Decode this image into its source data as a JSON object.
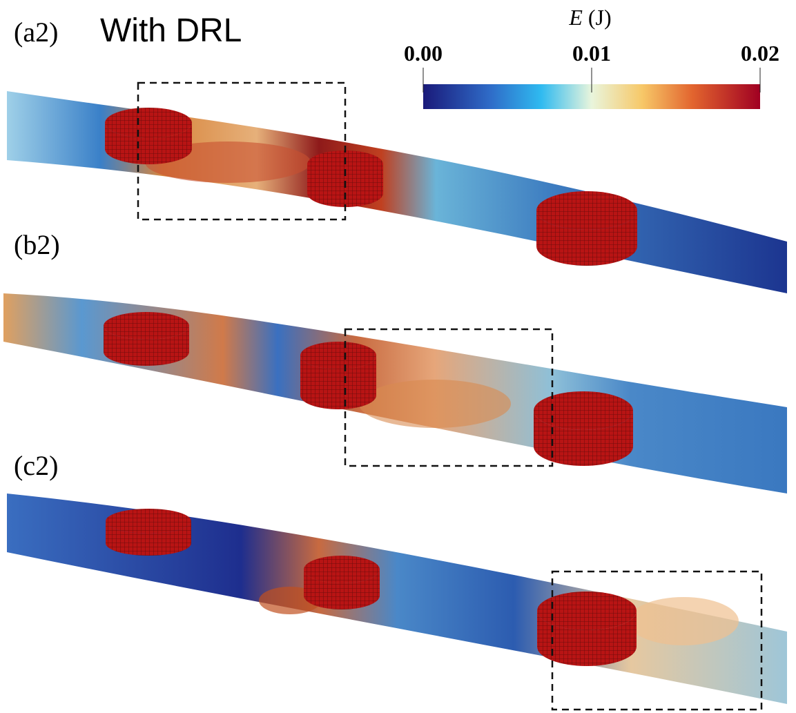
{
  "title": "With DRL",
  "panels": [
    {
      "label": "(a2)"
    },
    {
      "label": "(b2)"
    },
    {
      "label": "(c2)"
    }
  ],
  "colorbar": {
    "symbol": "E",
    "unit": "(J)",
    "lim": [
      0,
      0.02
    ],
    "ticks": [
      {
        "value": 0,
        "label": "0.00"
      },
      0.01,
      0.02
    ]
  }
}
